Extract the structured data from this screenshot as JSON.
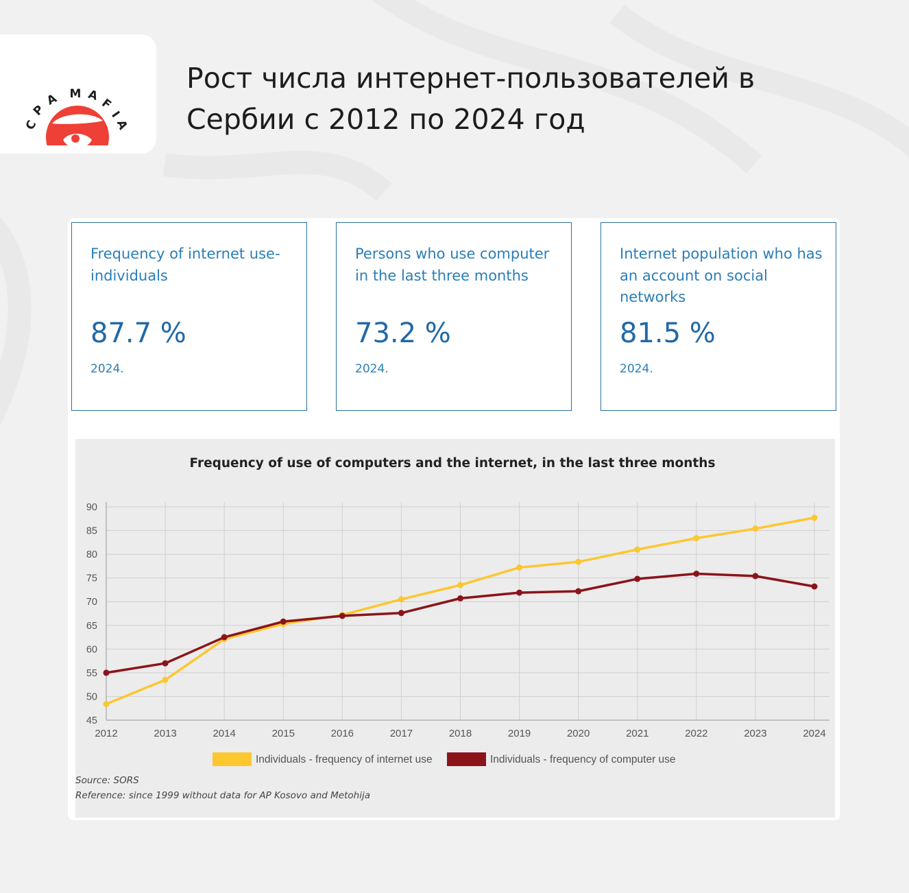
{
  "brand": {
    "name": "CPA MAFIA",
    "accent": "#ee4036"
  },
  "headline": {
    "line1": "Рост числа интернет-пользователей в",
    "line2": "Сербии с 2012 по 2024 год"
  },
  "kpis": [
    {
      "label": "Frequency of internet use- individuals",
      "value": "87.7 %",
      "year": "2024."
    },
    {
      "label": "Persons who use computer in the last three months",
      "value": "73.2 %",
      "year": "2024."
    },
    {
      "label": "Internet population who has an account on social networks",
      "value": "81.5 %",
      "year": "2024."
    }
  ],
  "chart_data": {
    "type": "line",
    "title": "Frequency of use of computers and the internet, in the last three months",
    "xlabel": "",
    "ylabel": "",
    "categories": [
      "2012",
      "2013",
      "2014",
      "2015",
      "2016",
      "2017",
      "2018",
      "2019",
      "2020",
      "2021",
      "2022",
      "2023",
      "2024"
    ],
    "ylim": [
      45,
      90
    ],
    "yticks": [
      45,
      50,
      55,
      60,
      65,
      70,
      75,
      80,
      85,
      90
    ],
    "grid": true,
    "legend_position": "bottom",
    "series": [
      {
        "name": "Individuals - frequency of internet use",
        "color": "#fcc72f",
        "values": [
          48.4,
          53.5,
          62.1,
          65.3,
          67.2,
          70.5,
          73.5,
          77.2,
          78.4,
          81.0,
          83.4,
          85.4,
          87.7
        ]
      },
      {
        "name": "Individuals - frequency of computer use",
        "color": "#8b141a",
        "values": [
          55.0,
          57.0,
          62.5,
          65.8,
          67.0,
          67.6,
          70.7,
          71.9,
          72.2,
          74.8,
          75.9,
          75.4,
          73.2
        ]
      }
    ]
  },
  "source_note": "Source: SORS",
  "reference_note": "Reference: since 1999 without data for AP Kosovo and Metohija"
}
